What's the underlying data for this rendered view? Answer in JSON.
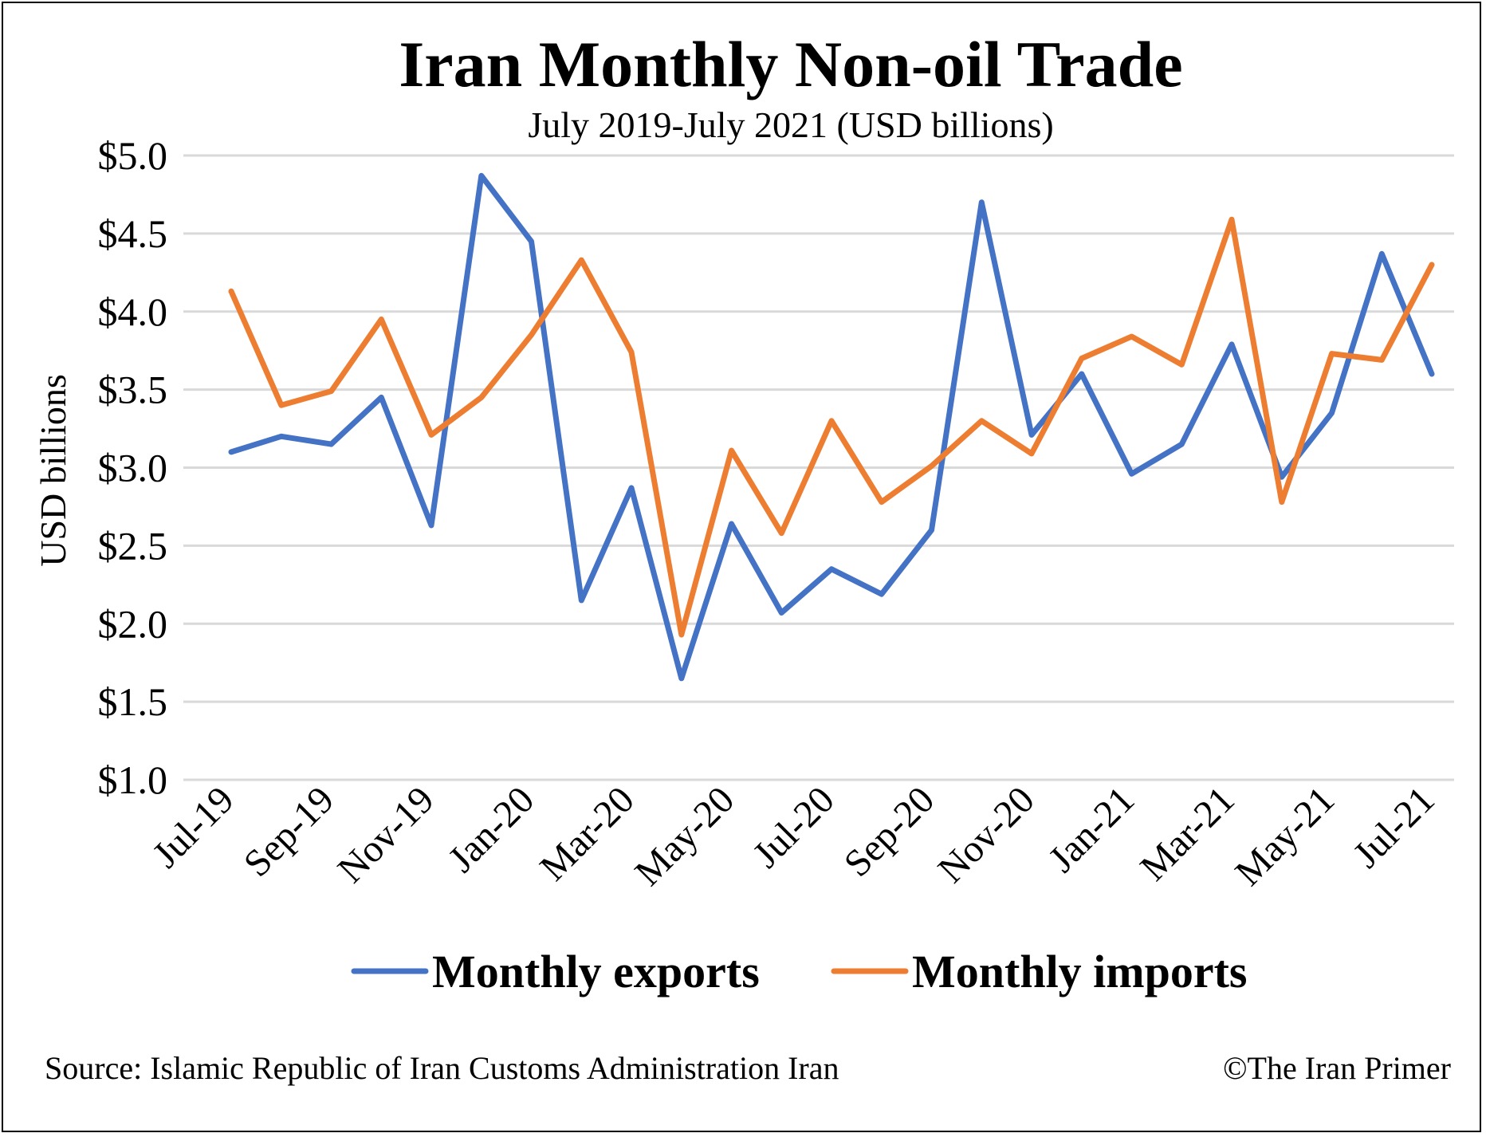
{
  "chart_data": {
    "type": "line",
    "title": "Iran Monthly Non-oil Trade",
    "subtitle": "July 2019-July 2021 (USD billions)",
    "ylabel": "USD billions",
    "xlabel": "",
    "ylim": [
      1.0,
      5.0
    ],
    "yticks": [
      5.0,
      4.5,
      4.0,
      3.5,
      3.0,
      2.5,
      2.0,
      1.5,
      1.0
    ],
    "ytick_labels": [
      "$5.0",
      "$4.5",
      "$4.0",
      "$3.5",
      "$3.0",
      "$2.5",
      "$2.0",
      "$1.5",
      "$1.0"
    ],
    "grid": true,
    "legend_position": "bottom",
    "categories": [
      "Jul-19",
      "Aug-19",
      "Sep-19",
      "Oct-19",
      "Nov-19",
      "Dec-19",
      "Jan-20",
      "Feb-20",
      "Mar-20",
      "Apr-20",
      "May-20",
      "Jun-20",
      "Jul-20",
      "Aug-20",
      "Sep-20",
      "Oct-20",
      "Nov-20",
      "Dec-20",
      "Jan-21",
      "Feb-21",
      "Mar-21",
      "Apr-21",
      "May-21",
      "Jun-21",
      "Jul-21"
    ],
    "tick_labels": [
      "Jul-19",
      "Sep-19",
      "Nov-19",
      "Jan-20",
      "Mar-20",
      "May-20",
      "Jul-20",
      "Sep-20",
      "Nov-20",
      "Jan-21",
      "Mar-21",
      "May-21",
      "Jul-21"
    ],
    "series": [
      {
        "name": "Monthly exports",
        "color": "#4472c4",
        "values": [
          3.1,
          3.2,
          3.15,
          3.45,
          2.63,
          4.87,
          4.45,
          2.15,
          2.87,
          1.65,
          2.64,
          2.07,
          2.35,
          2.19,
          2.6,
          4.7,
          3.21,
          3.6,
          2.96,
          3.15,
          3.79,
          2.94,
          3.35,
          4.37,
          3.6
        ]
      },
      {
        "name": "Monthly imports",
        "color": "#ed7d31",
        "values": [
          4.13,
          3.4,
          3.49,
          3.95,
          3.21,
          3.45,
          3.85,
          4.33,
          3.74,
          1.93,
          3.11,
          2.58,
          3.3,
          2.78,
          3.01,
          3.3,
          3.09,
          3.7,
          3.84,
          3.66,
          4.59,
          2.78,
          3.73,
          3.69,
          4.3
        ]
      }
    ]
  },
  "footer": {
    "source": "Source: Islamic Republic of Iran Customs Administration Iran",
    "credit": "©The Iran Primer"
  }
}
